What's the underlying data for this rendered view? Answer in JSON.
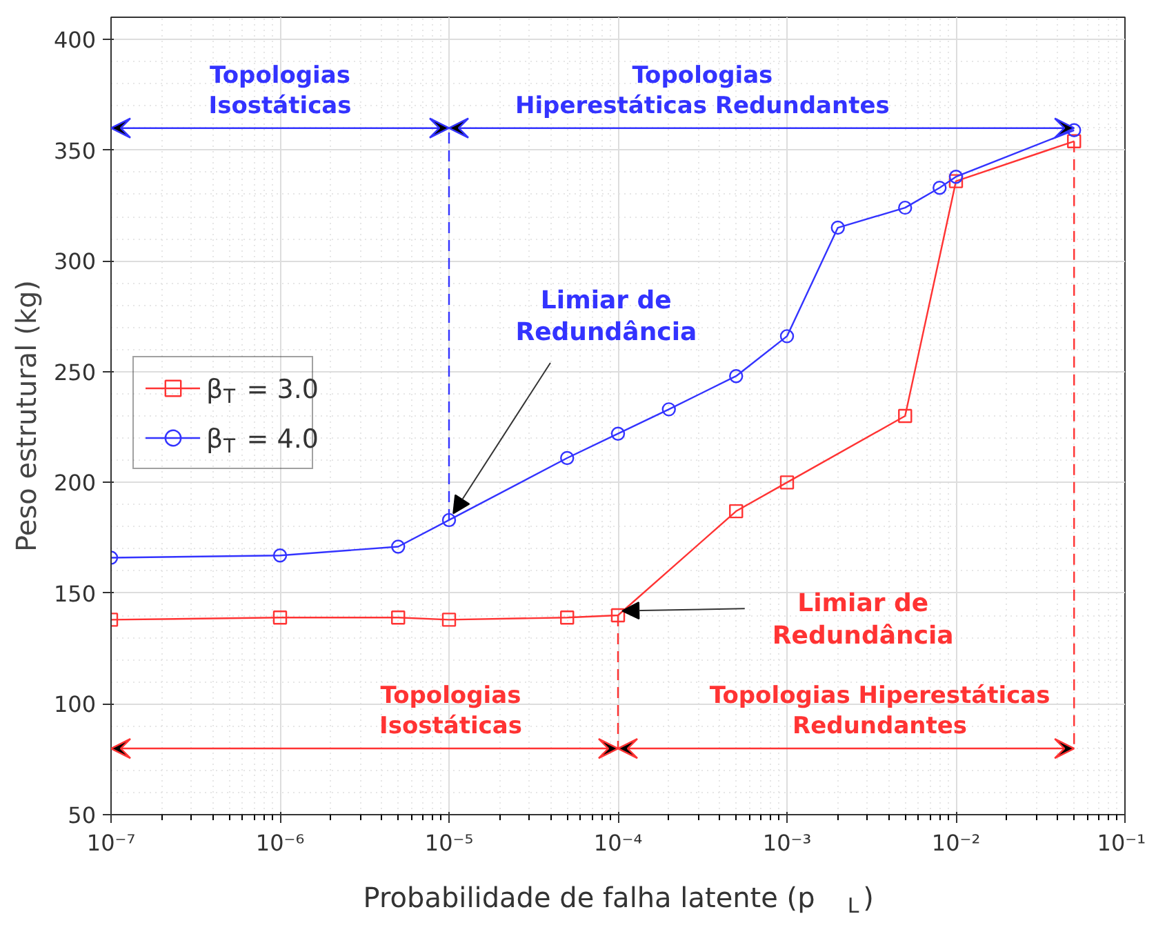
{
  "chart_data": {
    "type": "line",
    "xlabel": "Probabilidade de falha latente (p$_{L}$)",
    "ylabel": "Peso estrutural (kg)",
    "log": "x",
    "xlim": [
      1e-07,
      0.1
    ],
    "ylim": [
      50,
      410
    ],
    "xticks": [
      {
        "value": 1e-07,
        "label": "10⁻⁷"
      },
      {
        "value": 1e-06,
        "label": "10⁻⁶"
      },
      {
        "value": 1e-05,
        "label": "10⁻⁵"
      },
      {
        "value": 0.0001,
        "label": "10⁻⁴"
      },
      {
        "value": 0.001,
        "label": "10⁻³"
      },
      {
        "value": 0.01,
        "label": "10⁻²"
      },
      {
        "value": 0.1,
        "label": "10⁻¹"
      }
    ],
    "yticks": [
      50,
      100,
      150,
      200,
      250,
      300,
      350,
      400
    ],
    "grid": true,
    "legend": "left",
    "line_style": "solid",
    "series": [
      {
        "name": "β$_{T}$ = 3.0",
        "color": "#ff3333",
        "marker": "square",
        "x": [
          1e-07,
          1e-06,
          5e-06,
          1e-05,
          5e-05,
          0.0001,
          0.0005,
          0.001,
          0.005,
          0.01,
          0.05
        ],
        "values": [
          138,
          139,
          139,
          138,
          139,
          140,
          187,
          200,
          230,
          336,
          354
        ]
      },
      {
        "name": "β$_{T}$ = 4.0",
        "color": "#3333ff",
        "marker": "circle",
        "x": [
          1e-07,
          1e-06,
          5e-06,
          1e-05,
          5e-05,
          0.0001,
          0.0002,
          0.0005,
          0.001,
          0.002,
          0.005,
          0.008,
          0.01,
          0.05
        ],
        "values": [
          166,
          167,
          171,
          183,
          211,
          222,
          233,
          248,
          266,
          315,
          324,
          333,
          338,
          359
        ]
      }
    ],
    "annotations": [
      "Topologias\nIsostáticas",
      "Topologias Hiperestáticas\nRedundantes",
      {
        "text": "Limiar de\nRedundância",
        "x": 0.0001,
        "y": 140
      },
      "Topologias\nIsostáticas",
      "Topologias\nHiperestáticas Redundantes",
      {
        "text": "Limiar de\nRedundância",
        "x": 1e-05,
        "y": 183
      }
    ]
  }
}
